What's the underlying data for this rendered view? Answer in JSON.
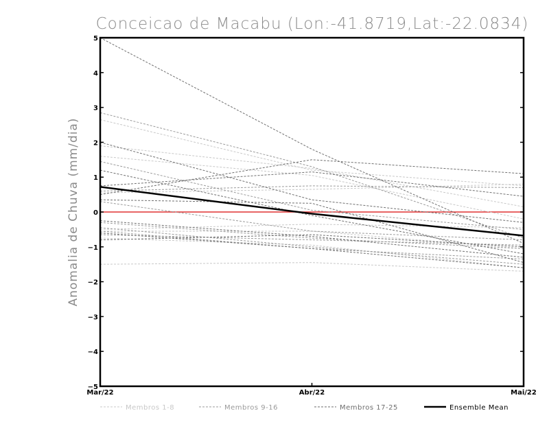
{
  "chart_data": {
    "type": "line",
    "title": "Conceicao de Macabu (Lon:-41.8719,Lat:-22.0834)",
    "xlabel": "",
    "ylabel": "Anomalia de Chuva (mm/dia)",
    "categories": [
      "Mar/22",
      "Abr/22",
      "Mai/22"
    ],
    "ylim": [
      -5,
      5
    ],
    "yticks": [
      "5",
      "4",
      "3",
      "2",
      "1",
      "0",
      "−1",
      "−2",
      "−3",
      "−4",
      "−5"
    ],
    "zero_line_color": "#e03030",
    "groups": [
      {
        "name": "Membros 1-8",
        "color": "#c8c8c8",
        "dash": "3,2"
      },
      {
        "name": "Membros 9-16",
        "color": "#9a9a9a",
        "dash": "3,2"
      },
      {
        "name": "Membros 17-25",
        "color": "#6e6e6e",
        "dash": "3,2"
      }
    ],
    "series": [
      {
        "group": 0,
        "values": [
          2.65,
          1.2,
          0.75
        ]
      },
      {
        "group": 0,
        "values": [
          1.9,
          1.25,
          0.15
        ]
      },
      {
        "group": 0,
        "values": [
          1.6,
          1.05,
          -0.2
        ]
      },
      {
        "group": 0,
        "values": [
          0.55,
          0.65,
          0.8
        ]
      },
      {
        "group": 0,
        "values": [
          -0.55,
          -0.55,
          -1.05
        ]
      },
      {
        "group": 0,
        "values": [
          -0.75,
          -0.95,
          -1.6
        ]
      },
      {
        "group": 0,
        "values": [
          -1.5,
          -1.45,
          -1.7
        ]
      },
      {
        "group": 0,
        "values": [
          -0.5,
          -0.35,
          -0.45
        ]
      },
      {
        "group": 1,
        "values": [
          2.85,
          1.3,
          -0.75
        ]
      },
      {
        "group": 1,
        "values": [
          1.45,
          0.05,
          -0.5
        ]
      },
      {
        "group": 1,
        "values": [
          0.6,
          0.75,
          0.7
        ]
      },
      {
        "group": 1,
        "values": [
          0.3,
          -0.55,
          -0.8
        ]
      },
      {
        "group": 1,
        "values": [
          -0.3,
          -0.75,
          -1.05
        ]
      },
      {
        "group": 1,
        "values": [
          -0.55,
          -1.05,
          -1.35
        ]
      },
      {
        "group": 1,
        "values": [
          -0.65,
          -0.8,
          -0.95
        ]
      },
      {
        "group": 1,
        "values": [
          -0.45,
          -1.0,
          -1.5
        ]
      },
      {
        "group": 2,
        "values": [
          5.0,
          1.8,
          -0.9
        ]
      },
      {
        "group": 2,
        "values": [
          2.0,
          0.35,
          -0.3
        ]
      },
      {
        "group": 2,
        "values": [
          1.2,
          -0.1,
          -1.2
        ]
      },
      {
        "group": 2,
        "values": [
          0.5,
          1.5,
          1.1
        ]
      },
      {
        "group": 2,
        "values": [
          0.75,
          1.15,
          0.45
        ]
      },
      {
        "group": 2,
        "values": [
          0.35,
          0.25,
          -1.45
        ]
      },
      {
        "group": 2,
        "values": [
          -0.25,
          -0.7,
          -1.3
        ]
      },
      {
        "group": 2,
        "values": [
          -0.8,
          -0.65,
          -1.0
        ]
      },
      {
        "group": 2,
        "values": [
          -0.6,
          -1.05,
          -1.6
        ]
      }
    ],
    "mean": {
      "name": "Ensemble Mean",
      "color": "#000000",
      "values": [
        0.72,
        -0.05,
        -0.68
      ]
    },
    "legend_position": "bottom"
  }
}
